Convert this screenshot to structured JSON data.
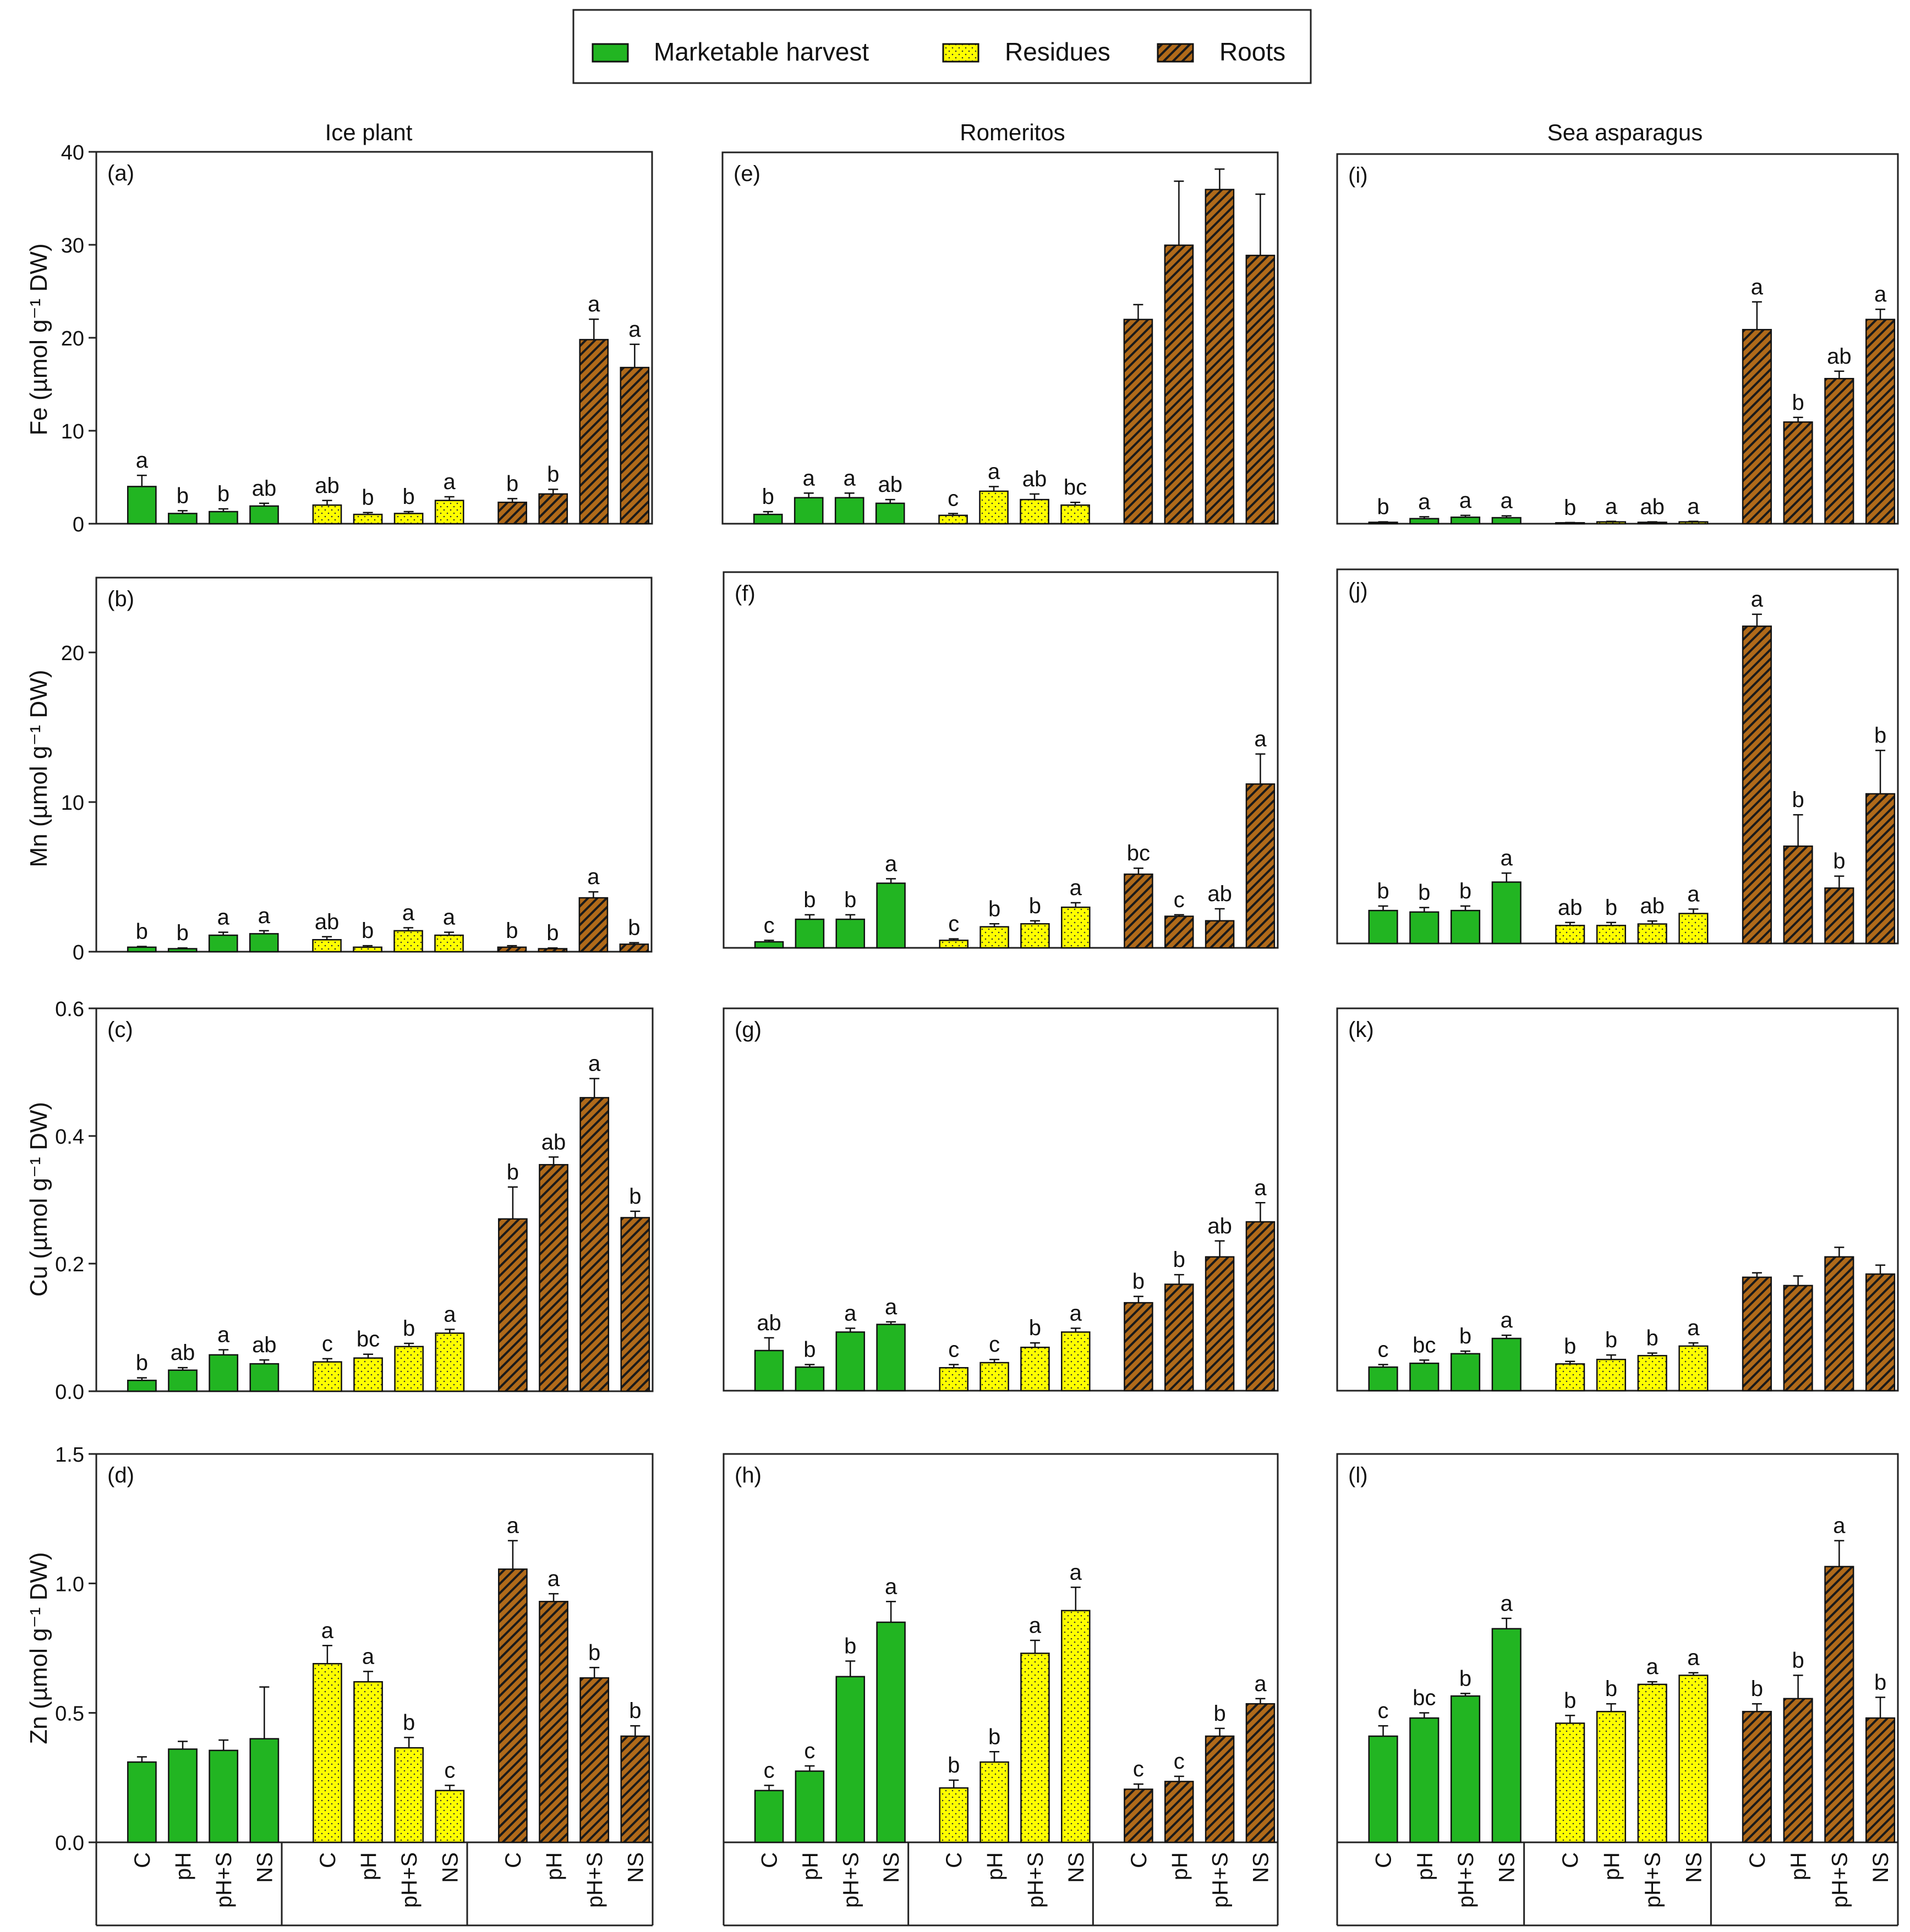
{
  "figure": {
    "legend": [
      {
        "key": "mh",
        "label": "Marketable harvest"
      },
      {
        "key": "res",
        "label": "Residues"
      },
      {
        "key": "root",
        "label": "Roots"
      }
    ],
    "columns": [
      "Ice plant",
      "Romeritos",
      "Sea asparagus"
    ],
    "rows": [
      {
        "ylabel": "Fe (µmol g⁻¹ DW)",
        "ylim": [
          0,
          40
        ],
        "ticks": [
          "0",
          "10",
          "20",
          "30",
          "40"
        ]
      },
      {
        "ylabel": "Mn (µmol g⁻¹ DW)",
        "ylim": [
          0,
          25
        ],
        "ticks": [
          "0",
          "10",
          "20"
        ]
      },
      {
        "ylabel": "Cu (µmol g⁻¹ DW)",
        "ylim": [
          0,
          0.6
        ],
        "ticks": [
          "0.0",
          "0.2",
          "0.4",
          "0.6"
        ]
      },
      {
        "ylabel": "Zn (µmol g⁻¹ DW)",
        "ylim": [
          0,
          1.5
        ],
        "ticks": [
          "0.0",
          "0.5",
          "1.0",
          "1.5"
        ]
      }
    ],
    "treatments": [
      "C",
      "pH",
      "pH+S",
      "NS"
    ],
    "colors": {
      "mh": "#22b522",
      "res": "#ffff00",
      "root": "#b06a1a",
      "axis": "#222222"
    }
  },
  "chart_data": [
    {
      "type": "bar",
      "panel": "(a)",
      "categories": [
        "C",
        "pH",
        "pH+S",
        "NS"
      ],
      "series": [
        {
          "name": "Marketable harvest",
          "values": [
            4.0,
            1.1,
            1.3,
            1.9
          ],
          "errors": [
            1.2,
            0.3,
            0.3,
            0.3
          ],
          "letters": [
            "a",
            "b",
            "b",
            "ab"
          ]
        },
        {
          "name": "Residues",
          "values": [
            2.0,
            1.0,
            1.1,
            2.5
          ],
          "errors": [
            0.5,
            0.2,
            0.2,
            0.4
          ],
          "letters": [
            "ab",
            "b",
            "b",
            "a"
          ]
        },
        {
          "name": "Roots",
          "values": [
            2.3,
            3.2,
            19.8,
            16.8
          ],
          "errors": [
            0.4,
            0.5,
            2.2,
            2.5
          ],
          "letters": [
            "b",
            "b",
            "a",
            "a"
          ]
        }
      ]
    },
    {
      "type": "bar",
      "panel": "(b)",
      "categories": [
        "C",
        "pH",
        "pH+S",
        "NS"
      ],
      "series": [
        {
          "name": "Marketable harvest",
          "values": [
            0.3,
            0.2,
            1.1,
            1.2
          ],
          "errors": [
            0.05,
            0.05,
            0.2,
            0.2
          ],
          "letters": [
            "b",
            "b",
            "a",
            "a"
          ]
        },
        {
          "name": "Residues",
          "values": [
            0.8,
            0.3,
            1.4,
            1.1
          ],
          "errors": [
            0.2,
            0.1,
            0.2,
            0.2
          ],
          "letters": [
            "ab",
            "b",
            "a",
            "a"
          ]
        },
        {
          "name": "Roots",
          "values": [
            0.3,
            0.2,
            3.6,
            0.5
          ],
          "errors": [
            0.1,
            0.05,
            0.4,
            0.1
          ],
          "letters": [
            "b",
            "b",
            "a",
            "b"
          ]
        }
      ]
    },
    {
      "type": "bar",
      "panel": "(c)",
      "categories": [
        "C",
        "pH",
        "pH+S",
        "NS"
      ],
      "series": [
        {
          "name": "Marketable harvest",
          "values": [
            0.017,
            0.033,
            0.057,
            0.043
          ],
          "errors": [
            0.004,
            0.004,
            0.008,
            0.006
          ],
          "letters": [
            "b",
            "ab",
            "a",
            "ab"
          ]
        },
        {
          "name": "Residues",
          "values": [
            0.046,
            0.052,
            0.07,
            0.091
          ],
          "errors": [
            0.005,
            0.006,
            0.005,
            0.006
          ],
          "letters": [
            "c",
            "bc",
            "b",
            "a"
          ]
        },
        {
          "name": "Roots",
          "values": [
            0.27,
            0.355,
            0.46,
            0.272
          ],
          "errors": [
            0.05,
            0.012,
            0.03,
            0.01
          ],
          "letters": [
            "b",
            "ab",
            "a",
            "b"
          ]
        }
      ]
    },
    {
      "type": "bar",
      "panel": "(d)",
      "categories": [
        "C",
        "pH",
        "pH+S",
        "NS"
      ],
      "series": [
        {
          "name": "Marketable harvest",
          "values": [
            0.31,
            0.36,
            0.355,
            0.4
          ],
          "errors": [
            0.02,
            0.03,
            0.04,
            0.2
          ],
          "letters": [
            "",
            "",
            "",
            ""
          ]
        },
        {
          "name": "Residues",
          "values": [
            0.69,
            0.62,
            0.365,
            0.2
          ],
          "errors": [
            0.07,
            0.04,
            0.04,
            0.02
          ],
          "letters": [
            "a",
            "a",
            "b",
            "c"
          ]
        },
        {
          "name": "Roots",
          "values": [
            1.055,
            0.93,
            0.635,
            0.41
          ],
          "errors": [
            0.11,
            0.03,
            0.04,
            0.04
          ],
          "letters": [
            "a",
            "a",
            "b",
            "b"
          ]
        }
      ]
    },
    {
      "type": "bar",
      "panel": "(e)",
      "categories": [
        "C",
        "pH",
        "pH+S",
        "NS"
      ],
      "series": [
        {
          "name": "Marketable harvest",
          "values": [
            1.0,
            2.8,
            2.8,
            2.2
          ],
          "errors": [
            0.3,
            0.5,
            0.5,
            0.4
          ],
          "letters": [
            "b",
            "a",
            "a",
            "ab"
          ]
        },
        {
          "name": "Residues",
          "values": [
            0.9,
            3.5,
            2.6,
            2.0
          ],
          "errors": [
            0.2,
            0.5,
            0.6,
            0.3
          ],
          "letters": [
            "c",
            "a",
            "ab",
            "bc"
          ]
        },
        {
          "name": "Roots",
          "values": [
            22.0,
            30.0,
            36.0,
            28.9
          ],
          "errors": [
            1.6,
            6.9,
            2.2,
            6.6
          ],
          "letters": [
            "",
            "",
            "",
            ""
          ]
        }
      ]
    },
    {
      "type": "bar",
      "panel": "(f)",
      "categories": [
        "C",
        "pH",
        "pH+S",
        "NS"
      ],
      "series": [
        {
          "name": "Marketable harvest",
          "values": [
            0.4,
            1.9,
            1.9,
            4.3
          ],
          "errors": [
            0.1,
            0.3,
            0.3,
            0.3
          ],
          "letters": [
            "c",
            "b",
            "b",
            "a"
          ]
        },
        {
          "name": "Residues",
          "values": [
            0.5,
            1.4,
            1.6,
            2.7
          ],
          "errors": [
            0.1,
            0.2,
            0.2,
            0.3
          ],
          "letters": [
            "c",
            "b",
            "b",
            "a"
          ]
        },
        {
          "name": "Roots",
          "values": [
            4.9,
            2.1,
            1.8,
            10.9
          ],
          "errors": [
            0.4,
            0.1,
            0.8,
            2.0
          ],
          "letters": [
            "bc",
            "c",
            "ab",
            "a"
          ]
        }
      ]
    },
    {
      "type": "bar",
      "panel": "(g)",
      "categories": [
        "C",
        "pH",
        "pH+S",
        "NS"
      ],
      "series": [
        {
          "name": "Marketable harvest",
          "values": [
            0.063,
            0.037,
            0.092,
            0.104
          ],
          "errors": [
            0.02,
            0.004,
            0.006,
            0.004
          ],
          "letters": [
            "ab",
            "b",
            "a",
            "a"
          ]
        },
        {
          "name": "Residues",
          "values": [
            0.036,
            0.044,
            0.068,
            0.092
          ],
          "errors": [
            0.005,
            0.005,
            0.007,
            0.006
          ],
          "letters": [
            "c",
            "c",
            "b",
            "a"
          ]
        },
        {
          "name": "Roots",
          "values": [
            0.138,
            0.167,
            0.21,
            0.265
          ],
          "errors": [
            0.01,
            0.015,
            0.025,
            0.03
          ],
          "letters": [
            "b",
            "b",
            "ab",
            "a"
          ]
        }
      ]
    },
    {
      "type": "bar",
      "panel": "(h)",
      "categories": [
        "C",
        "pH",
        "pH+S",
        "NS"
      ],
      "series": [
        {
          "name": "Marketable harvest",
          "values": [
            0.2,
            0.275,
            0.64,
            0.85
          ],
          "errors": [
            0.02,
            0.02,
            0.06,
            0.08
          ],
          "letters": [
            "c",
            "c",
            "b",
            "a"
          ]
        },
        {
          "name": "Residues",
          "values": [
            0.21,
            0.31,
            0.73,
            0.895
          ],
          "errors": [
            0.03,
            0.04,
            0.05,
            0.09
          ],
          "letters": [
            "b",
            "b",
            "a",
            "a"
          ]
        },
        {
          "name": "Roots",
          "values": [
            0.205,
            0.235,
            0.41,
            0.535
          ],
          "errors": [
            0.02,
            0.02,
            0.03,
            0.02
          ],
          "letters": [
            "c",
            "c",
            "b",
            "a"
          ]
        }
      ]
    },
    {
      "type": "bar",
      "panel": "(i)",
      "categories": [
        "C",
        "pH",
        "pH+S",
        "NS"
      ],
      "series": [
        {
          "name": "Marketable harvest",
          "values": [
            0.15,
            0.55,
            0.7,
            0.65
          ],
          "errors": [
            0.05,
            0.2,
            0.2,
            0.2
          ],
          "letters": [
            "b",
            "a",
            "a",
            "a"
          ]
        },
        {
          "name": "Residues",
          "values": [
            0.1,
            0.2,
            0.15,
            0.2
          ],
          "errors": [
            0.03,
            0.05,
            0.05,
            0.05
          ],
          "letters": [
            "b",
            "a",
            "ab",
            "a"
          ]
        },
        {
          "name": "Roots",
          "values": [
            21.0,
            11.0,
            15.7,
            22.1
          ],
          "errors": [
            3.0,
            0.5,
            0.8,
            1.1
          ],
          "letters": [
            "a",
            "b",
            "ab",
            "a"
          ]
        }
      ]
    },
    {
      "type": "bar",
      "panel": "(j)",
      "categories": [
        "C",
        "pH",
        "pH+S",
        "NS"
      ],
      "series": [
        {
          "name": "Marketable harvest",
          "values": [
            2.2,
            2.1,
            2.2,
            4.1
          ],
          "errors": [
            0.3,
            0.3,
            0.3,
            0.6
          ],
          "letters": [
            "b",
            "b",
            "b",
            "a"
          ]
        },
        {
          "name": "Residues",
          "values": [
            1.2,
            1.2,
            1.3,
            2.0
          ],
          "errors": [
            0.2,
            0.2,
            0.2,
            0.3
          ],
          "letters": [
            "ab",
            "b",
            "ab",
            "a"
          ]
        },
        {
          "name": "Roots",
          "values": [
            21.2,
            6.5,
            3.7,
            10.0
          ],
          "errors": [
            0.8,
            2.1,
            0.8,
            2.9
          ],
          "letters": [
            "a",
            "b",
            "b",
            "b"
          ]
        }
      ]
    },
    {
      "type": "bar",
      "panel": "(k)",
      "categories": [
        "C",
        "pH",
        "pH+S",
        "NS"
      ],
      "series": [
        {
          "name": "Marketable harvest",
          "values": [
            0.037,
            0.043,
            0.058,
            0.082
          ],
          "errors": [
            0.004,
            0.005,
            0.004,
            0.005
          ],
          "letters": [
            "c",
            "bc",
            "b",
            "a"
          ]
        },
        {
          "name": "Residues",
          "values": [
            0.042,
            0.049,
            0.055,
            0.07
          ],
          "errors": [
            0.004,
            0.007,
            0.004,
            0.005
          ],
          "letters": [
            "b",
            "b",
            "b",
            "a"
          ]
        },
        {
          "name": "Roots",
          "values": [
            0.178,
            0.165,
            0.21,
            0.183
          ],
          "errors": [
            0.007,
            0.015,
            0.015,
            0.014
          ],
          "letters": [
            "",
            "",
            "",
            ""
          ]
        }
      ]
    },
    {
      "type": "bar",
      "panel": "(l)",
      "categories": [
        "C",
        "pH",
        "pH+S",
        "NS"
      ],
      "series": [
        {
          "name": "Marketable harvest",
          "values": [
            0.41,
            0.48,
            0.565,
            0.825
          ],
          "errors": [
            0.04,
            0.02,
            0.01,
            0.04
          ],
          "letters": [
            "c",
            "bc",
            "b",
            "a"
          ]
        },
        {
          "name": "Residues",
          "values": [
            0.46,
            0.505,
            0.61,
            0.645
          ],
          "errors": [
            0.03,
            0.03,
            0.01,
            0.01
          ],
          "letters": [
            "b",
            "b",
            "a",
            "a"
          ]
        },
        {
          "name": "Roots",
          "values": [
            0.505,
            0.555,
            1.065,
            0.48
          ],
          "errors": [
            0.03,
            0.09,
            0.1,
            0.08
          ],
          "letters": [
            "b",
            "b",
            "a",
            "b"
          ]
        }
      ]
    }
  ]
}
